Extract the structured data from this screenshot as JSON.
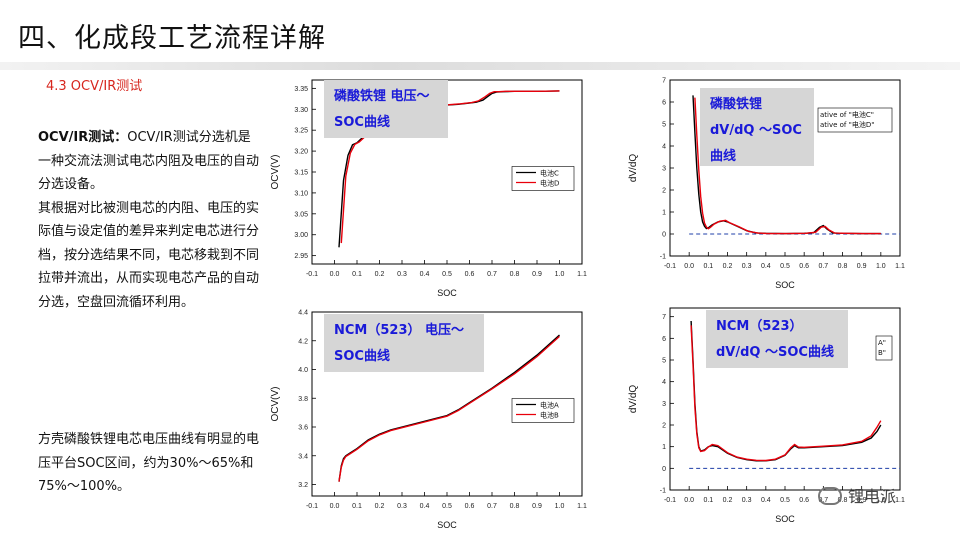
{
  "header": {
    "title": "四、化成段工艺流程详解",
    "subtitle": "4.3 OCV/IR测试"
  },
  "text": {
    "para1_bold": "OCV/IR测试：",
    "para1_rest": "OCV/IR测试分选机是一种交流法测试电芯内阻及电压的自动分选设备。",
    "para1_b": "其根据对比被测电芯的内阻、电压的实际值与设定值的差异来判定电芯进行分档，按分选结果不同，电芯移栽到不同拉带并流出，从而实现电芯产品的自动分选，空盘回流循环利用。",
    "para2": "方壳磷酸铁锂电芯电压曲线有明显的电压平台SOC区间，约为30%～65%和75%～100%。"
  },
  "watermark": {
    "text": "锂电派"
  },
  "colors": {
    "series_a": "#000000",
    "series_b": "#e8000b",
    "zero_line": "#1f3fa8",
    "callout_text": "#1a1ad8",
    "callout_bg": "#d6d6d6"
  },
  "chart_data": [
    {
      "id": "lfp_ocv",
      "type": "line",
      "callout": [
        "磷酸铁锂 电压～",
        "SOC曲线"
      ],
      "xlabel": "SOC",
      "ylabel": "OCV(V)",
      "xlim": [
        -0.1,
        1.1
      ],
      "ylim": [
        2.93,
        3.37
      ],
      "xticks": [
        -0.1,
        0.0,
        0.1,
        0.2,
        0.3,
        0.4,
        0.5,
        0.6,
        0.7,
        0.8,
        0.9,
        1.0,
        1.1
      ],
      "yticks": [
        2.95,
        3.0,
        3.05,
        3.1,
        3.15,
        3.2,
        3.25,
        3.3,
        3.35
      ],
      "ytick_decimals": 2,
      "legend": {
        "position": "inside-right",
        "entries": [
          "电池C",
          "电池D"
        ]
      },
      "series": [
        {
          "name": "电池C",
          "x": [
            0.02,
            0.04,
            0.06,
            0.08,
            0.1,
            0.12,
            0.14,
            0.16,
            0.18,
            0.2,
            0.25,
            0.3,
            0.4,
            0.5,
            0.55,
            0.6,
            0.63,
            0.66,
            0.68,
            0.7,
            0.72,
            0.75,
            0.8,
            0.9,
            1.0
          ],
          "y": [
            2.97,
            3.13,
            3.19,
            3.215,
            3.22,
            3.23,
            3.24,
            3.25,
            3.26,
            3.27,
            3.285,
            3.295,
            3.305,
            3.31,
            3.312,
            3.315,
            3.317,
            3.322,
            3.33,
            3.338,
            3.341,
            3.342,
            3.343,
            3.343,
            3.344
          ]
        },
        {
          "name": "电池D",
          "x": [
            0.03,
            0.05,
            0.07,
            0.09,
            0.11,
            0.13,
            0.15,
            0.17,
            0.19,
            0.21,
            0.26,
            0.31,
            0.41,
            0.51,
            0.56,
            0.61,
            0.64,
            0.67,
            0.69,
            0.71,
            0.73,
            0.76,
            0.81,
            0.91,
            1.0
          ],
          "y": [
            2.98,
            3.14,
            3.195,
            3.216,
            3.222,
            3.232,
            3.242,
            3.252,
            3.262,
            3.272,
            3.287,
            3.296,
            3.306,
            3.311,
            3.313,
            3.316,
            3.32,
            3.33,
            3.338,
            3.342,
            3.342,
            3.343,
            3.343,
            3.343,
            3.344
          ]
        }
      ]
    },
    {
      "id": "lfp_dvdq",
      "type": "line",
      "callout": [
        "磷酸铁锂",
        "dV/dQ ～SOC",
        "曲线"
      ],
      "xlabel": "SOC",
      "ylabel": "dV/dQ",
      "xlim": [
        -0.1,
        1.1
      ],
      "ylim": [
        -1,
        7
      ],
      "xticks": [
        -0.1,
        0.0,
        0.1,
        0.2,
        0.3,
        0.4,
        0.5,
        0.6,
        0.7,
        0.8,
        0.9,
        1.0,
        1.1
      ],
      "yticks": [
        -1,
        0,
        1,
        2,
        3,
        4,
        5,
        6,
        7
      ],
      "ytick_decimals": 0,
      "zero_line": true,
      "legend": {
        "position": "top-right",
        "entries": [
          "ative of \"电池C\"",
          "ative of \"电池D\""
        ]
      },
      "series": [
        {
          "name": "电池C",
          "x": [
            0.02,
            0.03,
            0.04,
            0.05,
            0.06,
            0.07,
            0.08,
            0.09,
            0.1,
            0.12,
            0.15,
            0.18,
            0.2,
            0.25,
            0.3,
            0.35,
            0.4,
            0.5,
            0.6,
            0.65,
            0.68,
            0.7,
            0.72,
            0.75,
            0.8,
            0.9,
            1.0
          ],
          "y": [
            6.3,
            4.6,
            3.0,
            1.8,
            1.0,
            0.55,
            0.35,
            0.25,
            0.28,
            0.42,
            0.55,
            0.6,
            0.55,
            0.35,
            0.15,
            0.05,
            0.03,
            0.02,
            0.03,
            0.06,
            0.3,
            0.38,
            0.22,
            0.05,
            0.03,
            0.02,
            0.02
          ]
        },
        {
          "name": "电池D",
          "x": [
            0.03,
            0.04,
            0.05,
            0.06,
            0.07,
            0.08,
            0.09,
            0.1,
            0.11,
            0.13,
            0.16,
            0.19,
            0.21,
            0.26,
            0.31,
            0.36,
            0.41,
            0.51,
            0.61,
            0.66,
            0.69,
            0.71,
            0.73,
            0.76,
            0.81,
            0.91,
            1.0
          ],
          "y": [
            6.2,
            4.5,
            2.9,
            1.7,
            0.95,
            0.5,
            0.32,
            0.24,
            0.3,
            0.45,
            0.58,
            0.62,
            0.52,
            0.33,
            0.12,
            0.04,
            0.02,
            0.02,
            0.03,
            0.08,
            0.32,
            0.34,
            0.18,
            0.04,
            0.03,
            0.02,
            0.02
          ]
        }
      ]
    },
    {
      "id": "ncm_ocv",
      "type": "line",
      "callout": [
        "NCM（523） 电压～",
        "SOC曲线"
      ],
      "xlabel": "SOC",
      "ylabel": "OCV(V)",
      "xlim": [
        -0.1,
        1.1
      ],
      "ylim": [
        3.12,
        4.4
      ],
      "xticks": [
        -0.1,
        0.0,
        0.1,
        0.2,
        0.3,
        0.4,
        0.5,
        0.6,
        0.7,
        0.8,
        0.9,
        1.0,
        1.1
      ],
      "yticks": [
        3.2,
        3.4,
        3.6,
        3.8,
        4.0,
        4.2,
        4.4
      ],
      "ytick_decimals": 1,
      "legend": {
        "position": "inside-right",
        "entries": [
          "电池A",
          "电池B"
        ]
      },
      "series": [
        {
          "name": "电池A",
          "x": [
            0.02,
            0.03,
            0.04,
            0.05,
            0.07,
            0.1,
            0.15,
            0.2,
            0.25,
            0.3,
            0.4,
            0.5,
            0.55,
            0.6,
            0.7,
            0.8,
            0.9,
            1.0
          ],
          "y": [
            3.22,
            3.33,
            3.38,
            3.4,
            3.42,
            3.45,
            3.51,
            3.55,
            3.58,
            3.6,
            3.64,
            3.68,
            3.72,
            3.77,
            3.87,
            3.98,
            4.1,
            4.24
          ]
        },
        {
          "name": "电池B",
          "x": [
            0.02,
            0.03,
            0.04,
            0.05,
            0.07,
            0.1,
            0.15,
            0.2,
            0.25,
            0.3,
            0.4,
            0.5,
            0.55,
            0.6,
            0.7,
            0.8,
            0.9,
            1.0
          ],
          "y": [
            3.22,
            3.32,
            3.37,
            3.395,
            3.415,
            3.445,
            3.505,
            3.545,
            3.575,
            3.595,
            3.635,
            3.675,
            3.715,
            3.765,
            3.865,
            3.97,
            4.09,
            4.23
          ]
        }
      ]
    },
    {
      "id": "ncm_dvdq",
      "type": "line",
      "callout": [
        "NCM（523）",
        "dV/dQ ～SOC曲线"
      ],
      "xlabel": "SOC",
      "ylabel": "dV/dQ",
      "xlim": [
        -0.1,
        1.1
      ],
      "ylim": [
        -1,
        7.4
      ],
      "xticks": [
        -0.1,
        0.0,
        0.1,
        0.2,
        0.3,
        0.4,
        0.5,
        0.6,
        0.7,
        0.8,
        0.9,
        1.0,
        1.1
      ],
      "yticks": [
        -1,
        0,
        1,
        2,
        3,
        4,
        5,
        6,
        7
      ],
      "ytick_decimals": 0,
      "zero_line": true,
      "legend": {
        "position": "top-right",
        "entries": [
          "A\"",
          "B\""
        ]
      },
      "series": [
        {
          "name": "A",
          "x": [
            0.01,
            0.02,
            0.03,
            0.04,
            0.05,
            0.06,
            0.08,
            0.1,
            0.12,
            0.15,
            0.2,
            0.25,
            0.3,
            0.35,
            0.4,
            0.45,
            0.5,
            0.53,
            0.55,
            0.57,
            0.6,
            0.7,
            0.8,
            0.9,
            0.95,
            0.98,
            1.0
          ],
          "y": [
            6.8,
            5.0,
            3.0,
            1.7,
            1.0,
            0.8,
            0.85,
            1.0,
            1.05,
            1.0,
            0.7,
            0.5,
            0.4,
            0.35,
            0.35,
            0.4,
            0.6,
            0.9,
            1.05,
            0.95,
            0.95,
            1.0,
            1.05,
            1.2,
            1.4,
            1.7,
            2.0
          ]
        },
        {
          "name": "B",
          "x": [
            0.01,
            0.02,
            0.03,
            0.04,
            0.05,
            0.06,
            0.08,
            0.1,
            0.12,
            0.15,
            0.2,
            0.25,
            0.3,
            0.35,
            0.4,
            0.45,
            0.5,
            0.53,
            0.55,
            0.57,
            0.6,
            0.7,
            0.8,
            0.9,
            0.95,
            0.98,
            1.0
          ],
          "y": [
            6.6,
            4.8,
            2.8,
            1.6,
            0.95,
            0.78,
            0.82,
            0.98,
            1.1,
            1.05,
            0.72,
            0.52,
            0.42,
            0.37,
            0.36,
            0.42,
            0.62,
            0.95,
            1.1,
            0.98,
            0.97,
            1.02,
            1.08,
            1.25,
            1.5,
            1.9,
            2.2
          ]
        }
      ]
    }
  ]
}
